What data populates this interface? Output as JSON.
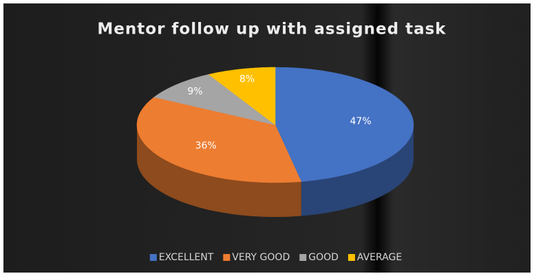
{
  "chart_data": {
    "type": "pie3d",
    "title": "Mentor follow up with assigned task",
    "categories": [
      "EXCELLENT",
      "VERY GOOD",
      "GOOD",
      "AVERAGE"
    ],
    "values": [
      47,
      36,
      9,
      8
    ],
    "value_labels": [
      "47%",
      "36%",
      "9%",
      "8%"
    ],
    "colors": [
      "#4472c4",
      "#ed7d31",
      "#a5a5a5",
      "#ffc000"
    ],
    "legend": "bottom"
  }
}
